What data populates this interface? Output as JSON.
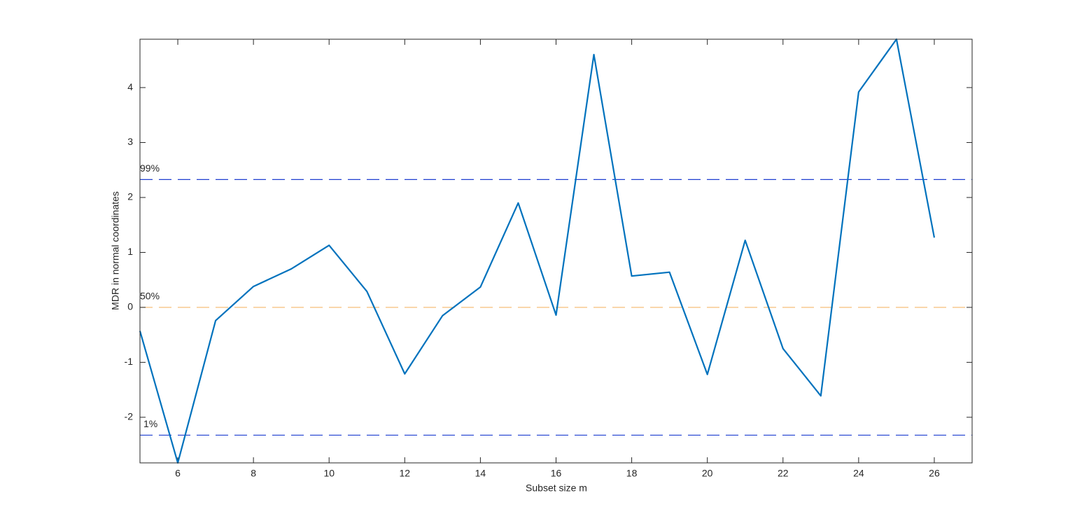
{
  "chart_data": {
    "type": "line",
    "xlabel": "Subset size m",
    "ylabel": "MDR in normal coordinates",
    "x": [
      5,
      6,
      7,
      8,
      9,
      10,
      11,
      12,
      13,
      14,
      15,
      16,
      17,
      18,
      19,
      20,
      21,
      22,
      23,
      24,
      25,
      26
    ],
    "values": [
      -0.43,
      -2.83,
      -0.24,
      0.38,
      0.7,
      1.13,
      0.29,
      -1.21,
      -0.15,
      0.37,
      1.9,
      -0.14,
      4.6,
      0.57,
      0.64,
      -1.22,
      1.22,
      -0.75,
      -1.61,
      3.92,
      4.88,
      1.27
    ],
    "color": "#0072bd",
    "xlim": [
      5,
      27
    ],
    "ylim": [
      -2.83,
      4.88
    ],
    "xticks": [
      6,
      8,
      10,
      12,
      14,
      16,
      18,
      20,
      22,
      24,
      26
    ],
    "yticks": [
      -2,
      -1,
      0,
      1,
      2,
      3,
      4
    ],
    "reference_lines": [
      {
        "value": 2.326,
        "label": "99%",
        "color": "#1f3fd0"
      },
      {
        "value": 0,
        "label": "50%",
        "color": "#f4b76a"
      },
      {
        "value": -2.326,
        "label": "1%",
        "color": "#1f3fd0"
      }
    ]
  }
}
